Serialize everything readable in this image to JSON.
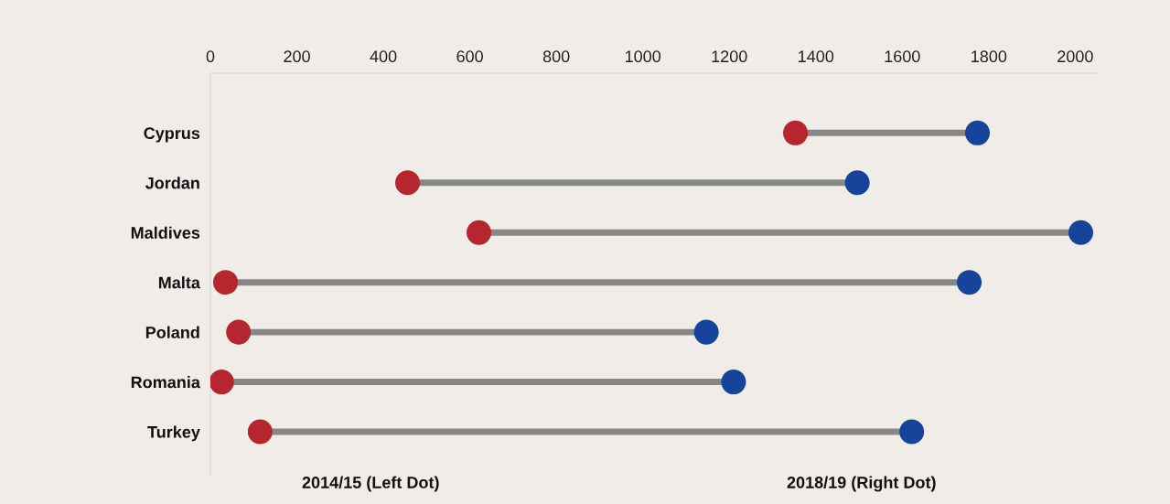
{
  "chart_data": {
    "type": "scatter",
    "orientation": "horizontal",
    "categories": [
      "Cyprus",
      "Jordan",
      "Maldives",
      "Malta",
      "Poland",
      "Romania",
      "Turkey"
    ],
    "series": [
      {
        "color": "#b5262e",
        "values": [
          1353,
          456,
          621,
          35,
          65,
          26,
          115
        ]
      },
      {
        "color": "#15449a",
        "values": [
          1774,
          1496,
          2013,
          1755,
          1147,
          1210,
          1622
        ]
      }
    ],
    "xlim": [
      0,
      2050
    ],
    "xticks": [
      0,
      200,
      400,
      600,
      800,
      1000,
      1200,
      1400,
      1600,
      1800,
      2000
    ],
    "marker": "circle",
    "grid": false,
    "annotations": [
      "2014/15 (Left Dot)",
      "2018/19 (Right Dot)"
    ]
  }
}
